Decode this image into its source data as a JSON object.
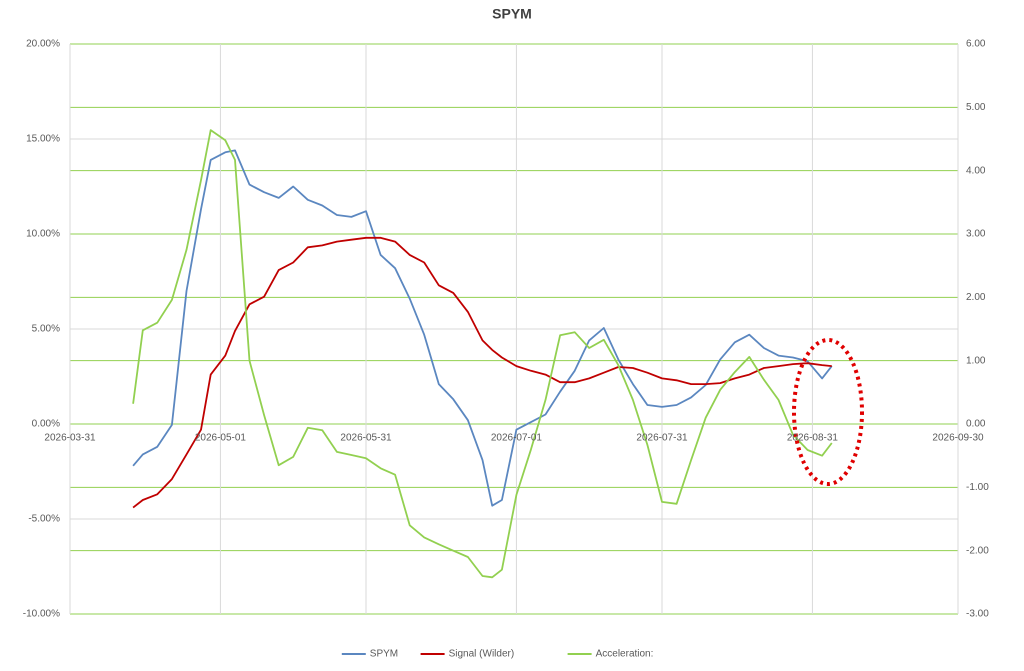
{
  "chart_data": {
    "type": "line",
    "title": "SPYM",
    "x": [
      "2026-04-13",
      "2026-04-15",
      "2026-04-18",
      "2026-04-21",
      "2026-04-24",
      "2026-04-27",
      "2026-04-29",
      "2026-05-02",
      "2026-05-04",
      "2026-05-07",
      "2026-05-10",
      "2026-05-13",
      "2026-05-16",
      "2026-05-19",
      "2026-05-22",
      "2026-05-25",
      "2026-05-28",
      "2026-05-31",
      "2026-06-03",
      "2026-06-06",
      "2026-06-09",
      "2026-06-12",
      "2026-06-15",
      "2026-06-18",
      "2026-06-21",
      "2026-06-24",
      "2026-06-26",
      "2026-06-28",
      "2026-07-01",
      "2026-07-04",
      "2026-07-07",
      "2026-07-10",
      "2026-07-13",
      "2026-07-16",
      "2026-07-19",
      "2026-07-22",
      "2026-07-25",
      "2026-07-28",
      "2026-07-31",
      "2026-08-03",
      "2026-08-06",
      "2026-08-09",
      "2026-08-12",
      "2026-08-15",
      "2026-08-18",
      "2026-08-21",
      "2026-08-24",
      "2026-08-27",
      "2026-08-30",
      "2026-09-02",
      "2026-09-04"
    ],
    "series": [
      {
        "name": "SPYM",
        "color": "#5b87c0",
        "values": [
          -2.2,
          -1.6,
          -1.2,
          -0.05,
          7.0,
          11.3,
          13.9,
          14.3,
          14.4,
          12.6,
          12.2,
          11.9,
          12.5,
          11.8,
          11.5,
          11.0,
          10.9,
          11.2,
          8.9,
          8.2,
          6.6,
          4.7,
          2.1,
          1.3,
          0.2,
          -1.9,
          -4.3,
          -4.0,
          -0.3,
          0.1,
          0.5,
          1.7,
          2.8,
          4.4,
          5.05,
          3.4,
          2.1,
          1.0,
          0.9,
          1.0,
          1.4,
          2.05,
          3.4,
          4.3,
          4.7,
          4.0,
          3.6,
          3.5,
          3.3,
          2.4,
          3.05
        ]
      },
      {
        "name": "Signal (Wilder)",
        "color": "#c00000",
        "values": [
          -4.4,
          -4.0,
          -3.7,
          -2.9,
          -1.6,
          -0.3,
          2.6,
          3.6,
          4.9,
          6.3,
          6.7,
          8.1,
          8.5,
          9.3,
          9.4,
          9.6,
          9.7,
          9.8,
          9.8,
          9.6,
          8.9,
          8.5,
          7.3,
          6.9,
          5.9,
          4.4,
          3.9,
          3.5,
          3.05,
          2.8,
          2.6,
          2.2,
          2.2,
          2.4,
          2.7,
          3.0,
          2.95,
          2.7,
          2.4,
          2.3,
          2.1,
          2.1,
          2.15,
          2.4,
          2.6,
          2.95,
          3.05,
          3.15,
          3.2,
          3.1,
          3.05
        ]
      },
      {
        "name": "Acceleration:",
        "color": "#92d050",
        "axis": "y2",
        "values": [
          0.32,
          1.48,
          1.6,
          1.96,
          2.75,
          3.85,
          4.64,
          4.48,
          4.17,
          1.0,
          0.14,
          -0.65,
          -0.52,
          -0.06,
          -0.1,
          -0.44,
          -0.49,
          -0.54,
          -0.7,
          -0.8,
          -1.6,
          -1.79,
          -1.9,
          -2.0,
          -2.1,
          -2.4,
          -2.42,
          -2.3,
          -1.12,
          -0.4,
          0.38,
          1.4,
          1.45,
          1.2,
          1.33,
          0.93,
          0.38,
          -0.33,
          -1.23,
          -1.26,
          -0.57,
          0.1,
          0.54,
          0.82,
          1.06,
          0.7,
          0.38,
          -0.17,
          -0.41,
          -0.5,
          -0.3
        ]
      }
    ],
    "xlim": [
      "2026-03-31",
      "2026-09-30"
    ],
    "xticks": [
      "2026-03-31",
      "2026-05-01",
      "2026-05-31",
      "2026-07-01",
      "2026-07-31",
      "2026-08-31",
      "2026-09-30"
    ],
    "ylim": [
      -10,
      20
    ],
    "yticks": [
      {
        "value": -10,
        "label": "-10.00%"
      },
      {
        "value": -5,
        "label": "-5.00%"
      },
      {
        "value": 0,
        "label": "0.00%"
      },
      {
        "value": 5,
        "label": "5.00%"
      },
      {
        "value": 10,
        "label": "10.00%"
      },
      {
        "value": 15,
        "label": "15.00%"
      },
      {
        "value": 20,
        "label": "20.00%"
      }
    ],
    "y2lim": [
      -3,
      6
    ],
    "y2ticks": [
      {
        "value": -3,
        "label": "-3.00"
      },
      {
        "value": -2,
        "label": "-2.00"
      },
      {
        "value": -1,
        "label": "-1.00"
      },
      {
        "value": 0,
        "label": "0.00"
      },
      {
        "value": 1,
        "label": "1.00"
      },
      {
        "value": 2,
        "label": "2.00"
      },
      {
        "value": 3,
        "label": "3.00"
      },
      {
        "value": 4,
        "label": "4.00"
      },
      {
        "value": 5,
        "label": "5.00"
      },
      {
        "value": 6,
        "label": "6.00"
      }
    ],
    "grid": true,
    "y2_grid_color": "#92d050",
    "legend": "bottom"
  }
}
